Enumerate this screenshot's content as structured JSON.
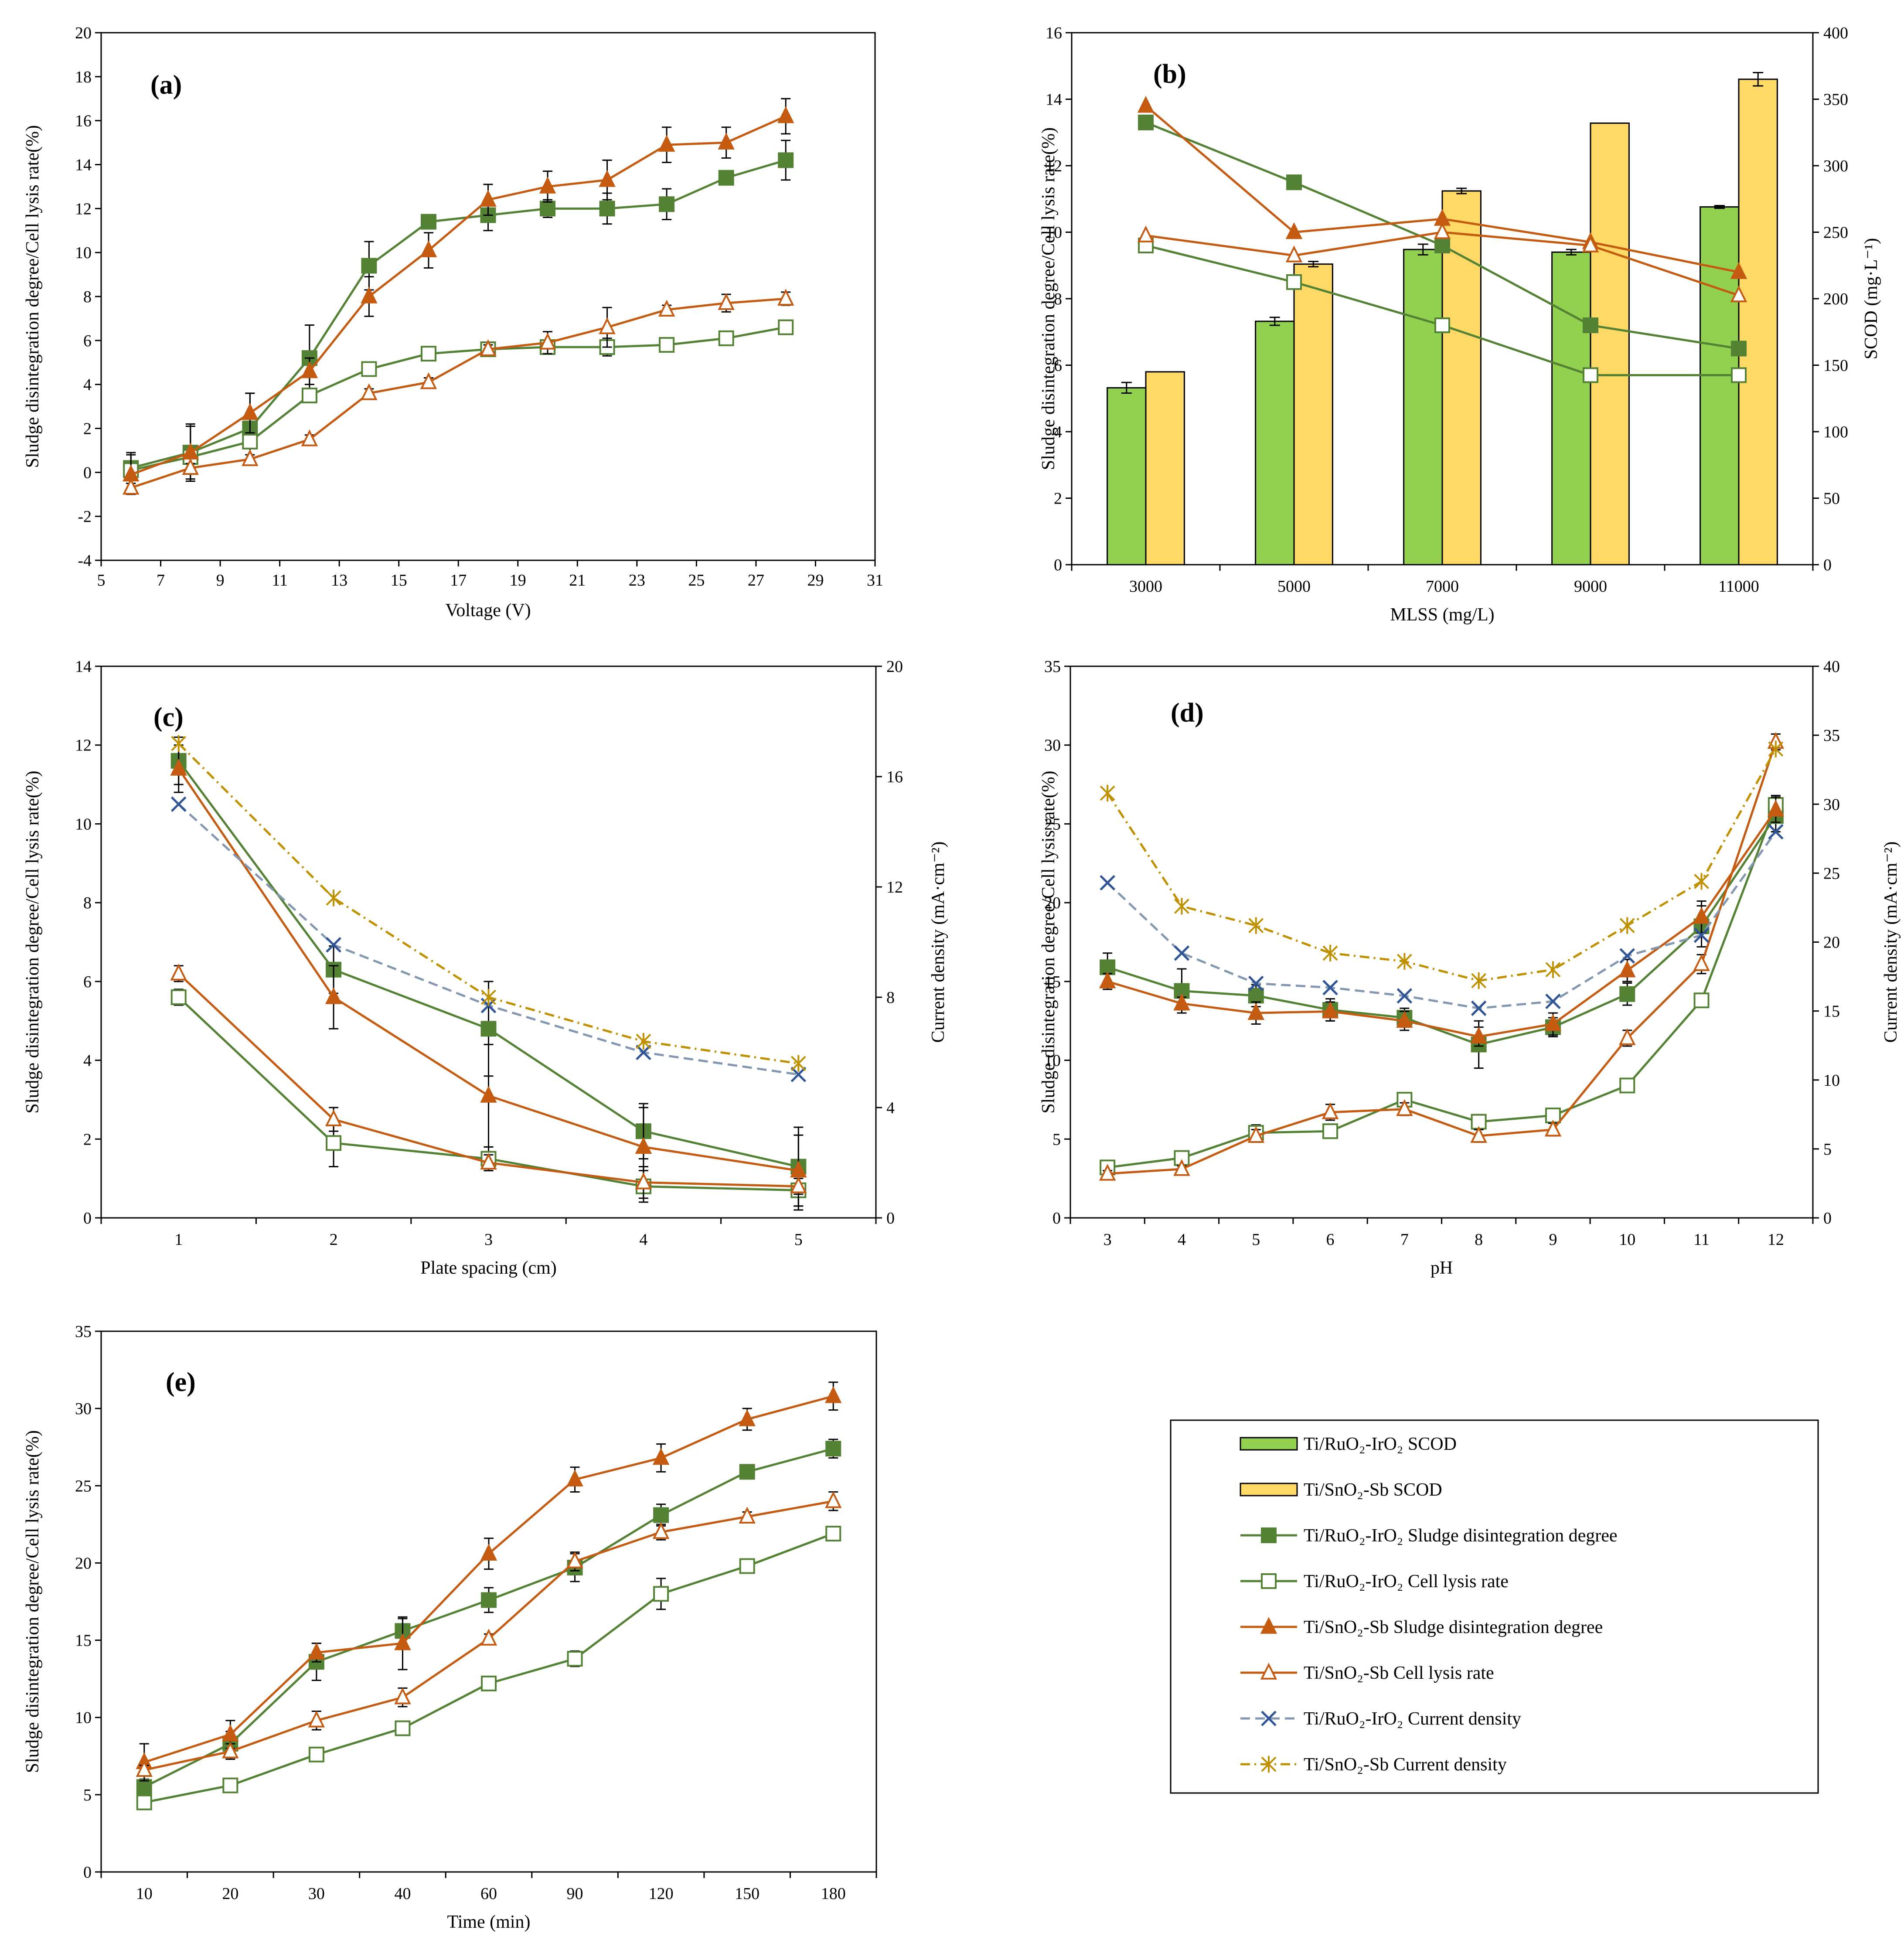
{
  "colors": {
    "green": "#548235",
    "orange": "#C55A11",
    "blue": "#8497B0",
    "gold": "#BF9000",
    "barGreen": "#92D050",
    "barYellow": "#FFD966"
  },
  "legend": [
    {
      "key": "ru_scod",
      "marker": "bar-green",
      "label": "Ti/RuO₂-IrO₂ SCOD"
    },
    {
      "key": "sn_scod",
      "marker": "bar-yellow",
      "label": "Ti/SnO₂-Sb SCOD"
    },
    {
      "key": "ru_dd",
      "marker": "square-filled",
      "label": "Ti/RuO₂-IrO₂ Sludge disintegration degree"
    },
    {
      "key": "ru_cl",
      "marker": "square-open",
      "label": "Ti/RuO₂-IrO₂ Cell lysis rate"
    },
    {
      "key": "sn_dd",
      "marker": "triangle-filled",
      "label": "Ti/SnO₂-Sb Sludge disintegration degree"
    },
    {
      "key": "sn_cl",
      "marker": "triangle-open",
      "label": "Ti/SnO₂-Sb Cell lysis rate"
    },
    {
      "key": "ru_cd",
      "marker": "x-dashed",
      "label": "Ti/RuO₂-IrO₂ Current density"
    },
    {
      "key": "sn_cd",
      "marker": "star-dashdot",
      "label": "Ti/SnO₂-Sb Current density"
    }
  ],
  "chart_data": [
    {
      "id": "a",
      "panel_label": "(a)",
      "type": "line",
      "xlabel": "Voltage (V)",
      "ylabel": "Sludge disintegration degree/Cell lysis rate(%)",
      "xlim": [
        5,
        31
      ],
      "xticks": [
        "5",
        "7",
        "9",
        "11",
        "13",
        "15",
        "17",
        "19",
        "21",
        "23",
        "25",
        "27",
        "29",
        "31"
      ],
      "ylim": [
        -4,
        20
      ],
      "yticks": [
        "-4",
        "-2",
        "0",
        "2",
        "4",
        "6",
        "8",
        "10",
        "12",
        "14",
        "16",
        "18",
        "20"
      ],
      "x": [
        6,
        8,
        10,
        12,
        14,
        16,
        18,
        20,
        22,
        24,
        26,
        28
      ],
      "series": [
        {
          "name": "Ti/RuO₂-IrO₂ Sludge disintegration degree",
          "style": "ru_dd",
          "values": [
            0.2,
            0.9,
            2.0,
            5.2,
            9.4,
            11.4,
            11.7,
            12.0,
            12.0,
            12.2,
            13.4,
            14.2
          ],
          "err": [
            0.7,
            1.3,
            1.6,
            1.5,
            1.1,
            0.3,
            0.7,
            0.4,
            0.7,
            0.7,
            0.3,
            0.9
          ]
        },
        {
          "name": "Ti/RuO₂-IrO₂ Cell lysis rate",
          "style": "ru_cl",
          "values": [
            0.1,
            0.7,
            1.4,
            3.5,
            4.7,
            5.4,
            5.6,
            5.7,
            5.7,
            5.8,
            6.1,
            6.6
          ],
          "err": [
            0.2,
            0.2,
            0.2,
            0.2,
            0.2,
            0.2,
            0.2,
            0.2,
            0.4,
            0.2,
            0.3,
            0.2
          ]
        },
        {
          "name": "Ti/SnO₂-Sb Sludge disintegration degree",
          "style": "sn_dd",
          "values": [
            -0.1,
            0.9,
            2.7,
            4.6,
            8.0,
            10.1,
            12.4,
            13.0,
            13.3,
            14.9,
            15.0,
            16.2
          ],
          "err": [
            0.9,
            1.2,
            0.9,
            0.6,
            0.9,
            0.8,
            0.7,
            0.7,
            0.9,
            0.8,
            0.7,
            0.8
          ]
        },
        {
          "name": "Ti/SnO₂-Sb Cell lysis rate",
          "style": "sn_cl",
          "values": [
            -0.7,
            0.2,
            0.6,
            1.5,
            3.6,
            4.1,
            5.6,
            5.9,
            6.6,
            7.4,
            7.7,
            7.9
          ],
          "err": [
            0.2,
            0.2,
            0.2,
            0.2,
            0.2,
            0.2,
            0.2,
            0.5,
            0.9,
            0.2,
            0.4,
            0.3
          ]
        }
      ]
    },
    {
      "id": "b",
      "panel_label": "(b)",
      "type": "bar+line",
      "xlabel": "MLSS (mg/L)",
      "ylabel": "Sludge disintegration degree/Cell lysis rate(%)",
      "y2label": "SCOD (mg·L⁻¹)",
      "categories": [
        "3000",
        "5000",
        "7000",
        "9000",
        "11000"
      ],
      "ylim": [
        0,
        16
      ],
      "yticks": [
        "0",
        "2",
        "4",
        "6",
        "8",
        "10",
        "12",
        "14",
        "16"
      ],
      "y2lim": [
        0,
        400
      ],
      "y2ticks": [
        "0",
        "50",
        "100",
        "150",
        "200",
        "250",
        "300",
        "350",
        "400"
      ],
      "bars": [
        {
          "name": "Ti/RuO₂-IrO₂ SCOD",
          "style": "ru_scod",
          "values": [
            133,
            183,
            237,
            235,
            269
          ],
          "err": [
            4,
            3,
            4,
            2,
            1
          ]
        },
        {
          "name": "Ti/SnO₂-Sb SCOD",
          "style": "sn_scod",
          "values": [
            145,
            226,
            281,
            332,
            365
          ],
          "err": [
            0,
            2,
            2,
            0,
            5
          ]
        }
      ],
      "series": [
        {
          "name": "Ti/RuO₂-IrO₂ Sludge disintegration degree",
          "style": "ru_dd",
          "values": [
            13.3,
            11.5,
            9.6,
            7.2,
            6.5
          ]
        },
        {
          "name": "Ti/RuO₂-IrO₂ Cell lysis rate",
          "style": "ru_cl",
          "values": [
            9.6,
            8.5,
            7.2,
            5.7,
            5.7
          ]
        },
        {
          "name": "Ti/SnO₂-Sb Sludge disintegration degree",
          "style": "sn_dd",
          "values": [
            13.8,
            10.0,
            10.4,
            9.7,
            8.8
          ]
        },
        {
          "name": "Ti/SnO₂-Sb Cell lysis rate",
          "style": "sn_cl",
          "values": [
            9.9,
            9.3,
            10.0,
            9.6,
            8.1
          ]
        }
      ]
    },
    {
      "id": "c",
      "panel_label": "(c)",
      "type": "line",
      "xlabel": "Plate spacing (cm)",
      "ylabel": "Sludge disintegration degree/Cell lysis rate(%)",
      "y2label": "Current density (mA·cm⁻²)",
      "categories": [
        "1",
        "2",
        "3",
        "4",
        "5"
      ],
      "ylim": [
        0,
        14
      ],
      "yticks": [
        "0",
        "2",
        "4",
        "6",
        "8",
        "10",
        "12",
        "14"
      ],
      "y2lim": [
        0,
        20
      ],
      "y2ticks": [
        "0",
        "4",
        "8",
        "12",
        "16",
        "20"
      ],
      "series": [
        {
          "name": "Ti/RuO₂-IrO₂ Sludge disintegration degree",
          "style": "ru_dd",
          "values": [
            11.6,
            6.3,
            4.8,
            2.2,
            1.3
          ],
          "err": [
            0.6,
            0.6,
            1.2,
            0.7,
            1.0
          ]
        },
        {
          "name": "Ti/RuO₂-IrO₂ Cell lysis rate",
          "style": "ru_cl",
          "values": [
            5.6,
            1.9,
            1.5,
            0.8,
            0.7
          ],
          "err": [
            0.2,
            0.6,
            0.3,
            0.4,
            0.5
          ]
        },
        {
          "name": "Ti/SnO₂-Sb Sludge disintegration degree",
          "style": "sn_dd",
          "values": [
            11.4,
            5.6,
            3.1,
            1.8,
            1.2
          ],
          "err": [
            0.6,
            0.8,
            1.3,
            1.0,
            0.9
          ]
        },
        {
          "name": "Ti/SnO₂-Sb Cell lysis rate",
          "style": "sn_cl",
          "values": [
            6.2,
            2.5,
            1.4,
            0.9,
            0.8
          ],
          "err": [
            0.2,
            0.3,
            0.2,
            0.4,
            0.2
          ]
        },
        {
          "name": "Ti/RuO₂-IrO₂ Current density",
          "style": "ru_cd",
          "axis": "y2",
          "values": [
            15.0,
            9.9,
            7.7,
            6.0,
            5.2
          ]
        },
        {
          "name": "Ti/SnO₂-Sb Current density",
          "style": "sn_cd",
          "axis": "y2",
          "values": [
            17.2,
            11.6,
            8.0,
            6.4,
            5.6
          ]
        }
      ]
    },
    {
      "id": "d",
      "panel_label": "(d)",
      "type": "line",
      "xlabel": "pH",
      "ylabel": "Sludge disintegration degree/Cell lysis rate(%)",
      "y2label": "Current density (mA·cm⁻²)",
      "categories": [
        "3",
        "4",
        "5",
        "6",
        "7",
        "8",
        "9",
        "10",
        "11",
        "12"
      ],
      "ylim": [
        0,
        35
      ],
      "yticks": [
        "0",
        "5",
        "10",
        "15",
        "20",
        "25",
        "30",
        "35"
      ],
      "y2lim": [
        0,
        40
      ],
      "y2ticks": [
        "0",
        "5",
        "10",
        "15",
        "20",
        "25",
        "30",
        "35",
        "40"
      ],
      "series": [
        {
          "name": "Ti/RuO₂-IrO₂ Sludge disintegration degree",
          "style": "ru_dd",
          "values": [
            15.9,
            14.4,
            14.1,
            13.2,
            12.7,
            11.0,
            12.1,
            14.2,
            18.5,
            25.5
          ],
          "err": [
            0.9,
            1.4,
            0.7,
            0.7,
            0.6,
            1.5,
            0.6,
            0.7,
            1.3,
            1.0
          ]
        },
        {
          "name": "Ti/RuO₂-IrO₂ Cell lysis rate",
          "style": "ru_cl",
          "values": [
            3.2,
            3.8,
            5.4,
            5.5,
            7.5,
            6.1,
            6.5,
            8.4,
            13.8,
            26.2
          ],
          "err": [
            0.3,
            0.3,
            0.5,
            0.3,
            0.4,
            0.3,
            0.3,
            0.4,
            0.3,
            0.6
          ]
        },
        {
          "name": "Ti/SnO₂-Sb Sludge disintegration degree",
          "style": "sn_dd",
          "values": [
            15.0,
            13.6,
            13.0,
            13.1,
            12.5,
            11.5,
            12.3,
            15.7,
            19.1,
            25.9
          ],
          "err": [
            0.5,
            0.4,
            0.7,
            0.6,
            0.6,
            0.6,
            0.7,
            0.7,
            1.0,
            0.8
          ]
        },
        {
          "name": "Ti/SnO₂-Sb Cell lysis rate",
          "style": "sn_cl",
          "values": [
            2.8,
            3.1,
            5.2,
            6.7,
            6.9,
            5.2,
            5.6,
            11.4,
            16.1,
            30.2
          ],
          "err": [
            0.2,
            0.2,
            0.4,
            0.5,
            0.4,
            0.4,
            0.4,
            0.5,
            0.6,
            0.5
          ]
        },
        {
          "name": "Ti/RuO₂-IrO₂ Current density",
          "style": "ru_cd",
          "axis": "y2",
          "values": [
            24.3,
            19.2,
            17.0,
            16.7,
            16.1,
            15.2,
            15.7,
            19.0,
            20.5,
            28.0
          ]
        },
        {
          "name": "Ti/SnO₂-Sb Current density",
          "style": "sn_cd",
          "axis": "y2",
          "values": [
            30.8,
            22.6,
            21.2,
            19.2,
            18.6,
            17.2,
            18.0,
            21.2,
            24.4,
            34.0
          ]
        }
      ]
    },
    {
      "id": "e",
      "panel_label": "(e)",
      "type": "line",
      "xlabel": "Time (min)",
      "ylabel": "Sludge disintegration degree/Cell lysis rate(%)",
      "categories": [
        "10",
        "20",
        "30",
        "40",
        "60",
        "90",
        "120",
        "150",
        "180"
      ],
      "ylim": [
        0,
        35
      ],
      "yticks": [
        "0",
        "5",
        "10",
        "15",
        "20",
        "25",
        "30",
        "35"
      ],
      "series": [
        {
          "name": "Ti/RuO₂-IrO₂ Sludge disintegration degree",
          "style": "ru_dd",
          "values": [
            5.5,
            8.3,
            13.6,
            15.6,
            17.6,
            19.7,
            23.1,
            25.9,
            27.4
          ],
          "err": [
            0.5,
            0.8,
            1.2,
            0.8,
            0.8,
            0.9,
            0.7,
            0.4,
            0.6
          ]
        },
        {
          "name": "Ti/RuO₂-IrO₂ Cell lysis rate",
          "style": "ru_cl",
          "values": [
            4.5,
            5.6,
            7.6,
            9.3,
            12.2,
            13.8,
            18.0,
            19.8,
            21.9
          ],
          "err": [
            0.3,
            0.2,
            0.3,
            0.2,
            0.3,
            0.5,
            1.0,
            0.2,
            0.3
          ]
        },
        {
          "name": "Ti/SnO₂-Sb Sludge disintegration degree",
          "style": "sn_dd",
          "values": [
            7.1,
            8.9,
            14.2,
            14.8,
            20.6,
            25.4,
            26.8,
            29.3,
            30.8
          ],
          "err": [
            1.2,
            0.9,
            0.6,
            1.7,
            1.0,
            0.8,
            0.9,
            0.7,
            0.9
          ]
        },
        {
          "name": "Ti/SnO₂-Sb Cell lysis rate",
          "style": "sn_cl",
          "values": [
            6.6,
            7.8,
            9.8,
            11.3,
            15.1,
            20.1,
            22.0,
            23.0,
            24.0
          ],
          "err": [
            0.3,
            0.5,
            0.6,
            0.6,
            0.3,
            0.6,
            0.5,
            0.3,
            0.6
          ]
        }
      ]
    }
  ]
}
